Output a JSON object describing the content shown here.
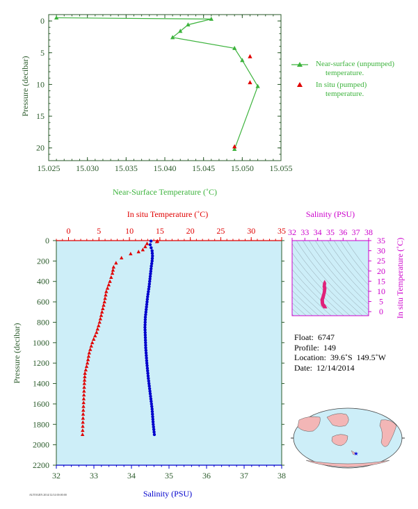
{
  "top_chart": {
    "xlabel": "Near-Surface Temperature (˚C)",
    "ylabel": "Pressure (decibar)",
    "xticks": [
      "15.025",
      "15.030",
      "15.035",
      "15.040",
      "15.045",
      "15.050",
      "15.055"
    ],
    "yticks": [
      "0",
      "5",
      "10",
      "15",
      "20"
    ],
    "legend": {
      "unpumped_line1": "Near-surface (unpumped)",
      "unpumped_line2": "temperature.",
      "pumped_line1": "In situ (pumped)",
      "pumped_line2": "temperature."
    },
    "colors": {
      "unpumped": "#3cb33c",
      "pumped": "#e00000",
      "axis": "#2a5a2a"
    }
  },
  "bottom_chart": {
    "top_xlabel": "In situ Temperature (˚C)",
    "bottom_xlabel": "Salinity (PSU)",
    "ylabel": "Pressure (decibar)",
    "top_xticks": [
      "0",
      "5",
      "10",
      "15",
      "20",
      "25",
      "30",
      "35"
    ],
    "bottom_xticks": [
      "32",
      "33",
      "34",
      "35",
      "36",
      "37",
      "38"
    ],
    "yticks": [
      "0",
      "200",
      "400",
      "600",
      "800",
      "1000",
      "1200",
      "1400",
      "1600",
      "1800",
      "2000",
      "2200"
    ],
    "colors": {
      "temperature": "#e00000",
      "salinity": "#0000cc",
      "background": "#cdeef8"
    }
  },
  "ts_chart": {
    "top_xlabel": "Salinity (PSU)",
    "right_ylabel": "In situ Temperature (˚C)",
    "xticks": [
      "32",
      "33",
      "34",
      "35",
      "36",
      "37",
      "38"
    ],
    "yticks": [
      "0",
      "5",
      "10",
      "15",
      "20",
      "25",
      "30",
      "35"
    ],
    "colors": {
      "points": "#e0207a",
      "axis": "#cc00cc"
    }
  },
  "float_info": {
    "float": "Float:  6747",
    "profile": "Profile:  149",
    "location": "Location:  39.6˚S  149.5˚W",
    "date": "Date:  12/14/2014"
  },
  "footer_text": "AUTOGEN 2014/12/14 00:00:00",
  "chart_data": [
    {
      "type": "line",
      "title": "",
      "xlabel": "Near-Surface Temperature (˚C)",
      "ylabel": "Pressure (decibar)",
      "xlim": [
        15.025,
        15.055
      ],
      "ylim": [
        22,
        -1
      ],
      "series": [
        {
          "name": "Near-surface (unpumped) temperature.",
          "x": [
            15.026,
            15.046,
            15.043,
            15.042,
            15.041,
            15.049,
            15.05,
            15.052,
            15.049
          ],
          "y": [
            -0.5,
            -0.3,
            0.6,
            1.6,
            2.6,
            4.3,
            6.2,
            10.3,
            20.2
          ]
        },
        {
          "name": "In situ (pumped) temperature.",
          "x": [
            15.051,
            15.051,
            15.049
          ],
          "y": [
            5.6,
            9.7,
            19.8
          ]
        }
      ],
      "legend": "right"
    },
    {
      "type": "scatter",
      "title": "",
      "xlabel": "Salinity (PSU)",
      "x2label": "In situ Temperature (˚C)",
      "ylabel": "Pressure (decibar)",
      "xlim": [
        32,
        38
      ],
      "x2lim": [
        -2,
        35
      ],
      "ylim": [
        2200,
        0
      ],
      "series": [
        {
          "name": "In situ Temperature",
          "x": [
            14.6,
            14.5,
            12.9,
            12.6,
            12.2,
            11.5,
            10.2,
            8.7,
            7.8,
            7.4,
            7.2,
            6.8,
            6.2,
            5.9,
            5.5,
            5.1,
            4.6,
            3.9,
            3.4,
            3.1,
            2.7,
            2.6,
            2.5,
            2.4,
            2.3
          ],
          "y": [
            5,
            10,
            30,
            60,
            90,
            110,
            130,
            170,
            220,
            260,
            320,
            400,
            500,
            600,
            700,
            800,
            900,
            1000,
            1100,
            1200,
            1300,
            1400,
            1550,
            1700,
            1900
          ]
        },
        {
          "name": "Salinity",
          "x": [
            34.52,
            34.5,
            34.55,
            34.56,
            34.55,
            34.53,
            34.5,
            34.47,
            34.43,
            34.4,
            34.37,
            34.36,
            34.37,
            34.38,
            34.41,
            34.45,
            34.5,
            34.55,
            34.58,
            34.61
          ],
          "y": [
            5,
            40,
            100,
            150,
            200,
            250,
            350,
            450,
            550,
            650,
            750,
            850,
            950,
            1050,
            1200,
            1350,
            1500,
            1650,
            1800,
            1900
          ]
        }
      ]
    },
    {
      "type": "scatter",
      "title": "",
      "xlabel": "Salinity (PSU)",
      "ylabel": "In situ Temperature (˚C)",
      "xlim": [
        32,
        38
      ],
      "ylim": [
        -2,
        35
      ],
      "series": [
        {
          "name": "T-S",
          "x": [
            34.55,
            34.52,
            34.56,
            34.55,
            34.53,
            34.47,
            34.43,
            34.4,
            34.37,
            34.36,
            34.37,
            34.38,
            34.41,
            34.45,
            34.5,
            34.55,
            34.58,
            34.61
          ],
          "y": [
            14.6,
            12.9,
            12.2,
            11.5,
            10.2,
            8.7,
            7.8,
            7.2,
            6.8,
            6.2,
            5.5,
            4.6,
            3.9,
            3.4,
            3.1,
            2.7,
            2.5,
            2.3
          ]
        }
      ]
    }
  ]
}
